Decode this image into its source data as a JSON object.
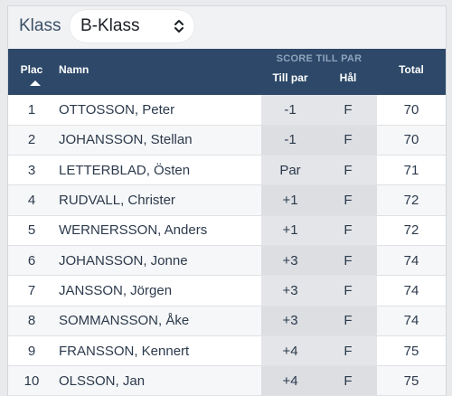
{
  "header": {
    "klass_label": "Klass",
    "klass_selected": "B-Klass"
  },
  "table": {
    "columns": {
      "plac": "Plac",
      "namn": "Namn",
      "score_group": "SCORE TILL PAR",
      "tillpar": "Till par",
      "hal": "Hål",
      "total": "Total"
    },
    "rows": [
      {
        "plac": "1",
        "namn": "OTTOSSON, Peter",
        "tillpar": "-1",
        "hal": "F",
        "total": "70"
      },
      {
        "plac": "2",
        "namn": "JOHANSSON, Stellan",
        "tillpar": "-1",
        "hal": "F",
        "total": "70"
      },
      {
        "plac": "3",
        "namn": "LETTERBLAD, Östen",
        "tillpar": "Par",
        "hal": "F",
        "total": "71"
      },
      {
        "plac": "4",
        "namn": "RUDVALL, Christer",
        "tillpar": "+1",
        "hal": "F",
        "total": "72"
      },
      {
        "plac": "5",
        "namn": "WERNERSSON, Anders",
        "tillpar": "+1",
        "hal": "F",
        "total": "72"
      },
      {
        "plac": "6",
        "namn": "JOHANSSON, Jonne",
        "tillpar": "+3",
        "hal": "F",
        "total": "74"
      },
      {
        "plac": "7",
        "namn": "JANSSON, Jörgen",
        "tillpar": "+3",
        "hal": "F",
        "total": "74"
      },
      {
        "plac": "8",
        "namn": "SOMMANSSON, Åke",
        "tillpar": "+3",
        "hal": "F",
        "total": "74"
      },
      {
        "plac": "9",
        "namn": "FRANSSON, Kennert",
        "tillpar": "+4",
        "hal": "F",
        "total": "75"
      },
      {
        "plac": "10",
        "namn": "OLSSON, Jan",
        "tillpar": "+4",
        "hal": "F",
        "total": "75"
      }
    ]
  },
  "colors": {
    "header_bg": "#2d4868",
    "score_group_text": "#8ea3be",
    "score_column_bg": "#e3e5e8"
  },
  "icons": {
    "select_chevron": "chevron-up-down-icon",
    "sort_arrow": "sort-ascending-icon"
  }
}
